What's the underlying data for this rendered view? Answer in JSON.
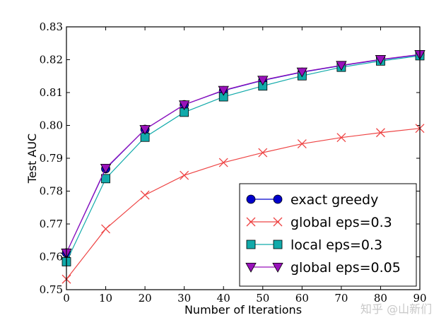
{
  "watermark": "知乎 @山新们",
  "chart_data": {
    "type": "line",
    "title": "",
    "xlabel": "Number of Iterations",
    "ylabel": "Test AUC",
    "xlim": [
      0,
      90
    ],
    "ylim": [
      0.75,
      0.83
    ],
    "x_ticks": [
      "0",
      "10",
      "20",
      "30",
      "40",
      "50",
      "60",
      "70",
      "80",
      "90"
    ],
    "y_ticks": [
      "0.75",
      "0.76",
      "0.77",
      "0.78",
      "0.79",
      "0.80",
      "0.81",
      "0.82",
      "0.83"
    ],
    "legend_position": "bottom-right",
    "x": [
      0,
      10,
      20,
      30,
      40,
      50,
      60,
      70,
      80,
      90
    ],
    "series": [
      {
        "name": "exact greedy",
        "color": "#0000cc",
        "marker": "circle",
        "values": [
          0.7612,
          0.7868,
          0.7988,
          0.8063,
          0.8106,
          0.8137,
          0.8162,
          0.8182,
          0.82,
          0.8215
        ]
      },
      {
        "name": "global eps=0.3",
        "color": "#ee4444",
        "marker": "x",
        "values": [
          0.7532,
          0.7685,
          0.7788,
          0.7848,
          0.7887,
          0.7917,
          0.7944,
          0.7963,
          0.7978,
          0.7991
        ]
      },
      {
        "name": "local eps=0.3",
        "color": "#11aaaa",
        "marker": "square",
        "values": [
          0.7585,
          0.7838,
          0.7964,
          0.804,
          0.8087,
          0.812,
          0.8151,
          0.8177,
          0.8196,
          0.8212
        ]
      },
      {
        "name": "global eps=0.05",
        "color": "#9911bb",
        "marker": "triangle-down",
        "values": [
          0.7612,
          0.787,
          0.7988,
          0.8063,
          0.8107,
          0.8138,
          0.8163,
          0.8183,
          0.8201,
          0.8216
        ]
      }
    ]
  }
}
